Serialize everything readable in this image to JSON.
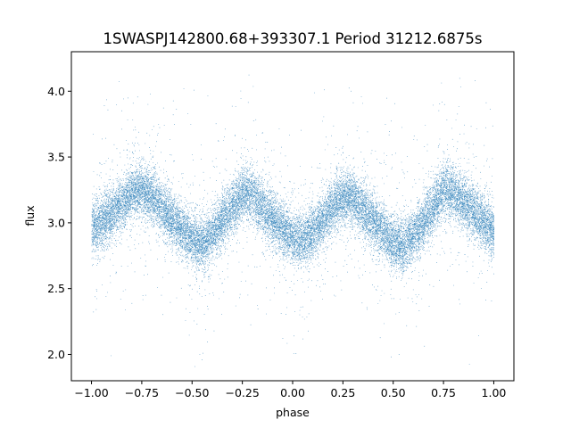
{
  "chart_data": {
    "type": "scatter",
    "title": "1SWASPJ142800.68+393307.1 Period 31212.6875s",
    "xlabel": "phase",
    "ylabel": "flux",
    "xlim": [
      -1.1,
      1.1
    ],
    "ylim": [
      1.8,
      4.3
    ],
    "x_ticks": [
      -1.0,
      -0.75,
      -0.5,
      -0.25,
      0.0,
      0.25,
      0.5,
      0.75,
      1.0
    ],
    "x_tick_labels": [
      "−1.00",
      "−0.75",
      "−0.50",
      "−0.25",
      "0.00",
      "0.25",
      "0.50",
      "0.75",
      "1.00"
    ],
    "y_ticks": [
      2.0,
      2.5,
      3.0,
      3.5,
      4.0
    ],
    "y_tick_labels": [
      "2.0",
      "2.5",
      "3.0",
      "3.5",
      "4.0"
    ],
    "grid": false,
    "point_color": "#1f77b4",
    "series": [
      {
        "x": [
          -1.0,
          -0.9,
          -0.8,
          -0.75,
          -0.7,
          -0.6,
          -0.5,
          -0.45,
          -0.4,
          -0.3,
          -0.25,
          -0.2,
          -0.1,
          0.0,
          0.05,
          0.1,
          0.2,
          0.25,
          0.3,
          0.4,
          0.5,
          0.55,
          0.6,
          0.7,
          0.75,
          0.8,
          0.9,
          1.0
        ],
        "y": [
          2.95,
          3.08,
          3.22,
          3.25,
          3.2,
          3.03,
          2.87,
          2.84,
          2.92,
          3.12,
          3.24,
          3.2,
          3.03,
          2.88,
          2.87,
          2.93,
          3.13,
          3.2,
          3.18,
          3.02,
          2.84,
          2.82,
          2.9,
          3.13,
          3.25,
          3.23,
          3.08,
          2.93
        ]
      }
    ],
    "n_points": 24000
  }
}
